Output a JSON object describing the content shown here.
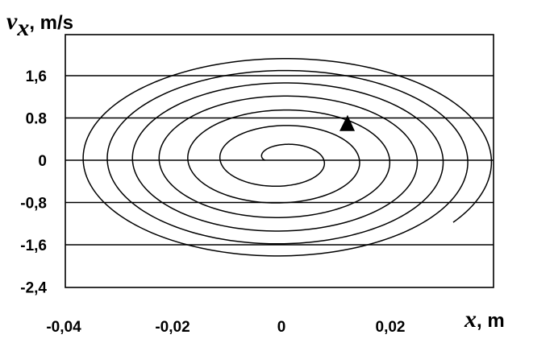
{
  "chart_data": {
    "type": "line",
    "title": "",
    "xlabel": {
      "symbol": "x",
      "unit": ", m"
    },
    "ylabel": {
      "symbol": "v",
      "subscript": "x",
      "unit": ", m/s"
    },
    "xlim": [
      -0.04,
      0.04
    ],
    "ylim": [
      -2.4,
      2.4
    ],
    "x_ticks": [
      {
        "value": -0.04,
        "label": "-0,04"
      },
      {
        "value": -0.02,
        "label": "-0,02"
      },
      {
        "value": 0,
        "label": "0"
      },
      {
        "value": 0.02,
        "label": "0,02"
      }
    ],
    "y_ticks": [
      {
        "value": 1.6,
        "label": "1,6"
      },
      {
        "value": 0.8,
        "label": "0.8"
      },
      {
        "value": 0,
        "label": "0"
      },
      {
        "value": -0.8,
        "label": "-0,8"
      },
      {
        "value": -1.6,
        "label": "-1,6"
      },
      {
        "value": -2.4,
        "label": "-2,4"
      }
    ],
    "gridlines_y": [
      1.6,
      0.8,
      0,
      -0.8,
      -1.6
    ],
    "grid": "horizontal",
    "spiral": {
      "description": "phase trajectory spiralling outward clockwise from the origin",
      "start": [
        -0.003,
        0
      ],
      "amplitude_x_start": 0.003,
      "amplitude_x_end": 0.039,
      "amplitude_v_start": 0.15,
      "amplitude_v_end": 2.0,
      "turns": 6.6,
      "arrow_at": [
        0.012,
        0.75
      ]
    }
  }
}
